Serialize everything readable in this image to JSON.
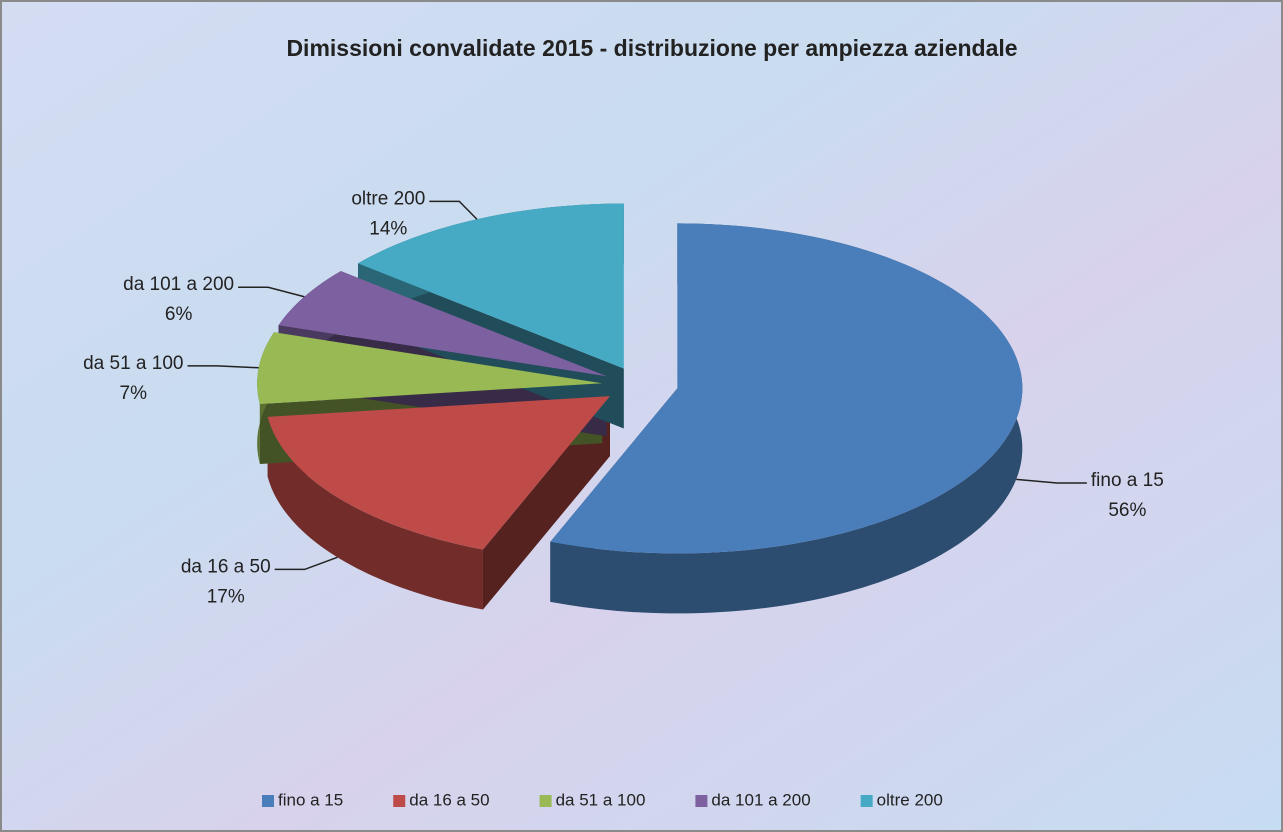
{
  "chart_data": {
    "type": "pie",
    "title": "Dimissioni convalidate 2015 - distribuzione per ampiezza aziendale",
    "categories": [
      "fino a 15",
      "da 16 a 50",
      "da 51 a 100",
      "da 101 a 200",
      "oltre 200"
    ],
    "values": [
      56,
      17,
      7,
      6,
      14
    ],
    "value_labels": [
      "56%",
      "17%",
      "7%",
      "6%",
      "14%"
    ],
    "colors": [
      "#4a7ebb",
      "#be4b48",
      "#98b954",
      "#7d60a0",
      "#46aac5"
    ],
    "legend": "bottom"
  }
}
